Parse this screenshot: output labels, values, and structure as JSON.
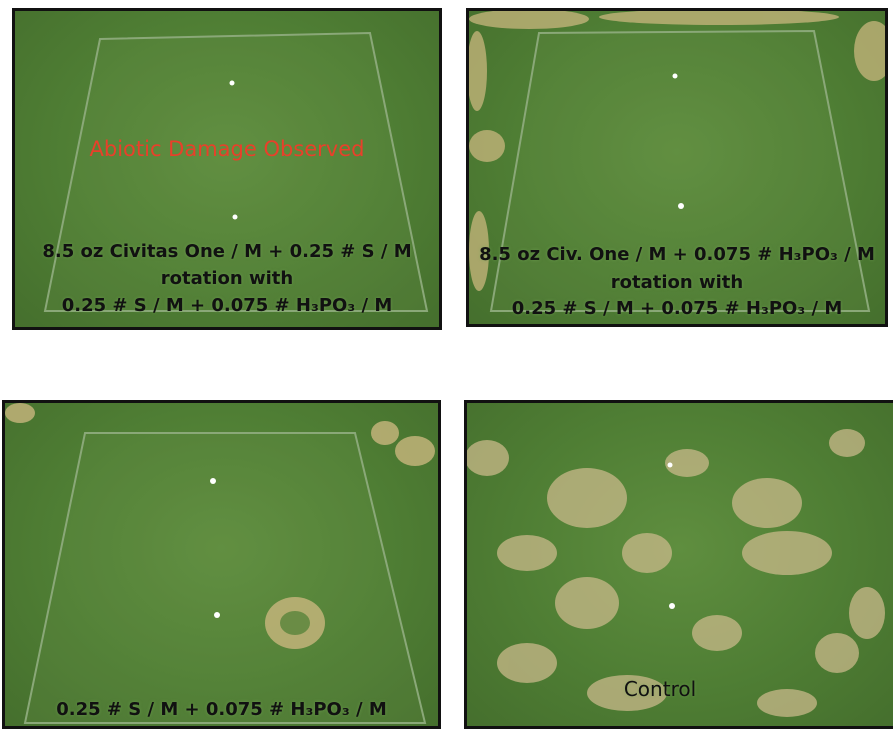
{
  "panels": [
    {
      "overlay": "Abiotic Damage Observed",
      "caption_lines": [
        "8.5 oz Civitas One / M + 0.25 # S / M",
        "rotation with",
        "0.25 # S / M + 0.075 # H₃PO₃ / M"
      ]
    },
    {
      "caption_lines": [
        "8.5 oz Civ. One / M + 0.075 # H₃PO₃ / M",
        "rotation with",
        "0.25 # S / M + 0.075 # H₃PO₃ / M"
      ]
    },
    {
      "caption_lines": [
        "0.25 # S / M + 0.075 # H₃PO₃ / M"
      ]
    },
    {
      "caption_lines": [
        "Control"
      ]
    }
  ]
}
